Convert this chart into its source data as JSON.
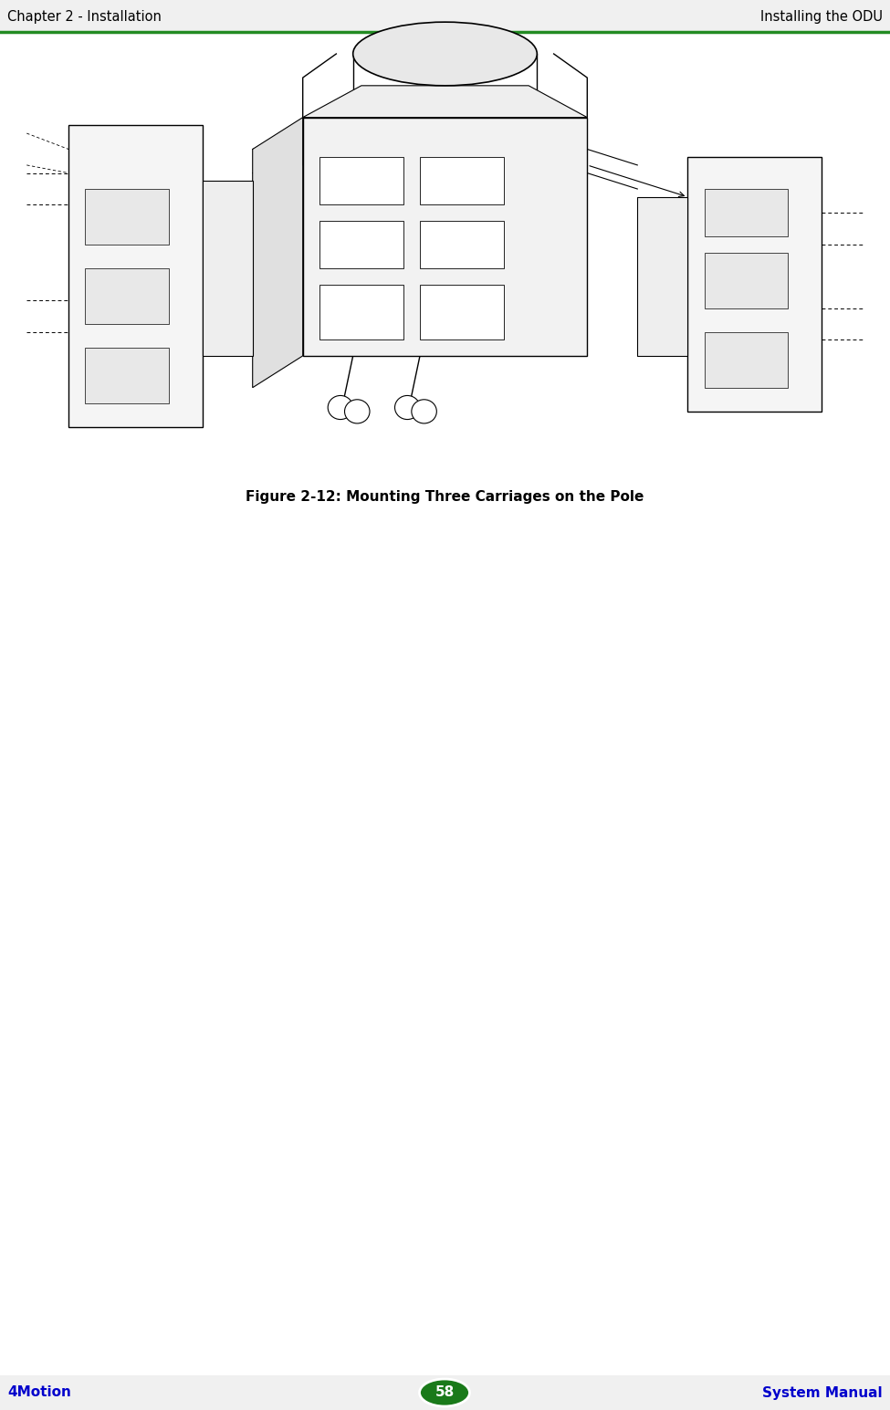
{
  "background_color": "#f0f0f0",
  "page_background": "#ffffff",
  "header_left": "Chapter 2 - Installation",
  "header_right": "Installing the ODU",
  "header_line_color": "#228B22",
  "footer_left": "4Motion",
  "footer_right": "System Manual",
  "footer_page_num": "58",
  "footer_oval_color": "#1a7a1a",
  "footer_text_color": "#0000cc",
  "footer_bg_color": "#d3d3d3",
  "caption": "Figure 2-12: Mounting Three Carriages on the Pole",
  "header_fontsize": 10.5,
  "footer_fontsize": 11,
  "caption_fontsize": 11
}
